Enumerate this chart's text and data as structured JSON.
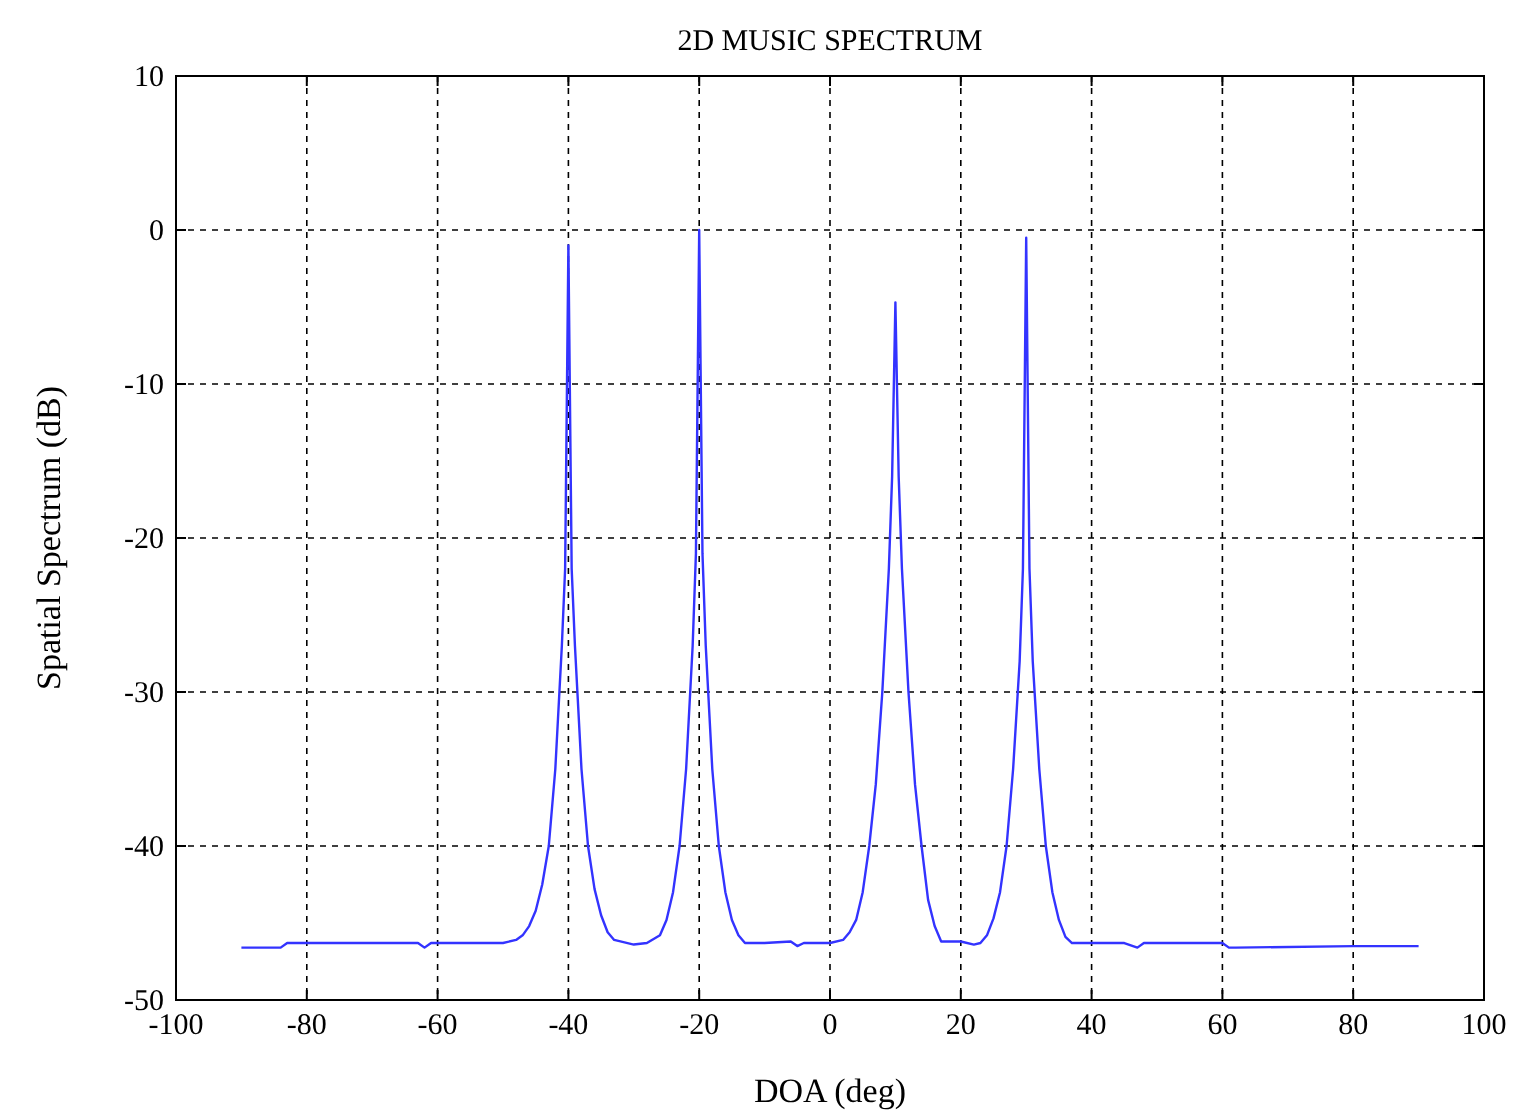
{
  "chart_data": {
    "type": "line",
    "title": "2D MUSIC SPECTRUM",
    "xlabel": "DOA (deg)",
    "ylabel": "Spatial Spectrum (dB)",
    "xlim": [
      -100,
      100
    ],
    "xticks": [
      -100,
      -80,
      -60,
      -40,
      -20,
      0,
      20,
      40,
      60,
      80,
      100
    ],
    "ylim": [
      -50,
      10
    ],
    "yticks": [
      -50,
      -40,
      -30,
      -20,
      -10,
      0,
      10
    ],
    "grid": true,
    "series": [
      {
        "color": "#3333ff",
        "x": [
          -90,
          -84,
          -83,
          -70,
          -63,
          -62,
          -61,
          -55,
          -50,
          -48,
          -47,
          -46,
          -45,
          -44,
          -43,
          -42,
          -41,
          -40.5,
          -40,
          -39.5,
          -39,
          -38,
          -37,
          -36,
          -35,
          -34,
          -33,
          -30,
          -28,
          -26,
          -25,
          -24,
          -23,
          -22,
          -21,
          -20.5,
          -20,
          -19.5,
          -19,
          -18,
          -17,
          -16,
          -15,
          -14,
          -13,
          -10,
          -6,
          -5,
          -4,
          0,
          2,
          3,
          4,
          5,
          6,
          7,
          8,
          9,
          9.5,
          10,
          10.5,
          11,
          12,
          13,
          14,
          15,
          16,
          17,
          20,
          22,
          23,
          24,
          25,
          26,
          27,
          28,
          29,
          29.5,
          30,
          30.5,
          31,
          32,
          33,
          34,
          35,
          36,
          37,
          40,
          45,
          47,
          48,
          60,
          61,
          62,
          80,
          81,
          90
        ],
        "values": [
          -46.6,
          -46.6,
          -46.3,
          -46.3,
          -46.3,
          -46.6,
          -46.3,
          -46.3,
          -46.3,
          -46.1,
          -45.8,
          -45.2,
          -44.2,
          -42.5,
          -40,
          -35,
          -27,
          -22,
          -1,
          -22,
          -27,
          -35,
          -40,
          -42.8,
          -44.5,
          -45.6,
          -46.1,
          -46.4,
          -46.3,
          -45.8,
          -44.8,
          -43,
          -40,
          -35,
          -27,
          -21,
          0,
          -21,
          -27,
          -35,
          -40,
          -43,
          -44.8,
          -45.8,
          -46.3,
          -46.3,
          -46.2,
          -46.5,
          -46.3,
          -46.3,
          -46.1,
          -45.6,
          -44.8,
          -43,
          -40,
          -36,
          -30,
          -22,
          -16,
          -4.7,
          -16,
          -22,
          -30,
          -36,
          -40,
          -43.5,
          -45.2,
          -46.2,
          -46.2,
          -46.4,
          -46.3,
          -45.8,
          -44.7,
          -43,
          -40,
          -35,
          -28,
          -22,
          -0.5,
          -22,
          -28,
          -35,
          -40,
          -43,
          -44.8,
          -45.9,
          -46.3,
          -46.3,
          -46.3,
          -46.6,
          -46.3,
          -46.3,
          -46.6,
          -46.6,
          -46.5,
          -46.5,
          -46.5
        ]
      }
    ]
  }
}
